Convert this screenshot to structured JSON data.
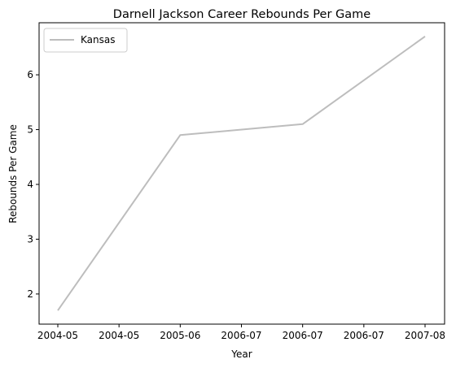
{
  "chart_data": {
    "type": "line",
    "title": "Darnell Jackson Career Rebounds Per Game",
    "xlabel": "Year",
    "ylabel": "Rebounds Per Game",
    "x": [
      "2004-05",
      "2005-06",
      "2006-07",
      "2007-08"
    ],
    "x_tick_labels": [
      "2004-05",
      "2004-05",
      "2005-06",
      "2006-07",
      "2006-07",
      "2006-07",
      "2007-08"
    ],
    "y_ticks": [
      2,
      3,
      4,
      5,
      6
    ],
    "ylim": [
      1.45,
      6.95
    ],
    "series": [
      {
        "name": "Kansas",
        "color": "#bdbdbd",
        "values": [
          1.7,
          4.9,
          5.1,
          6.7
        ]
      }
    ],
    "grid": false,
    "legend_position": "upper-left"
  }
}
